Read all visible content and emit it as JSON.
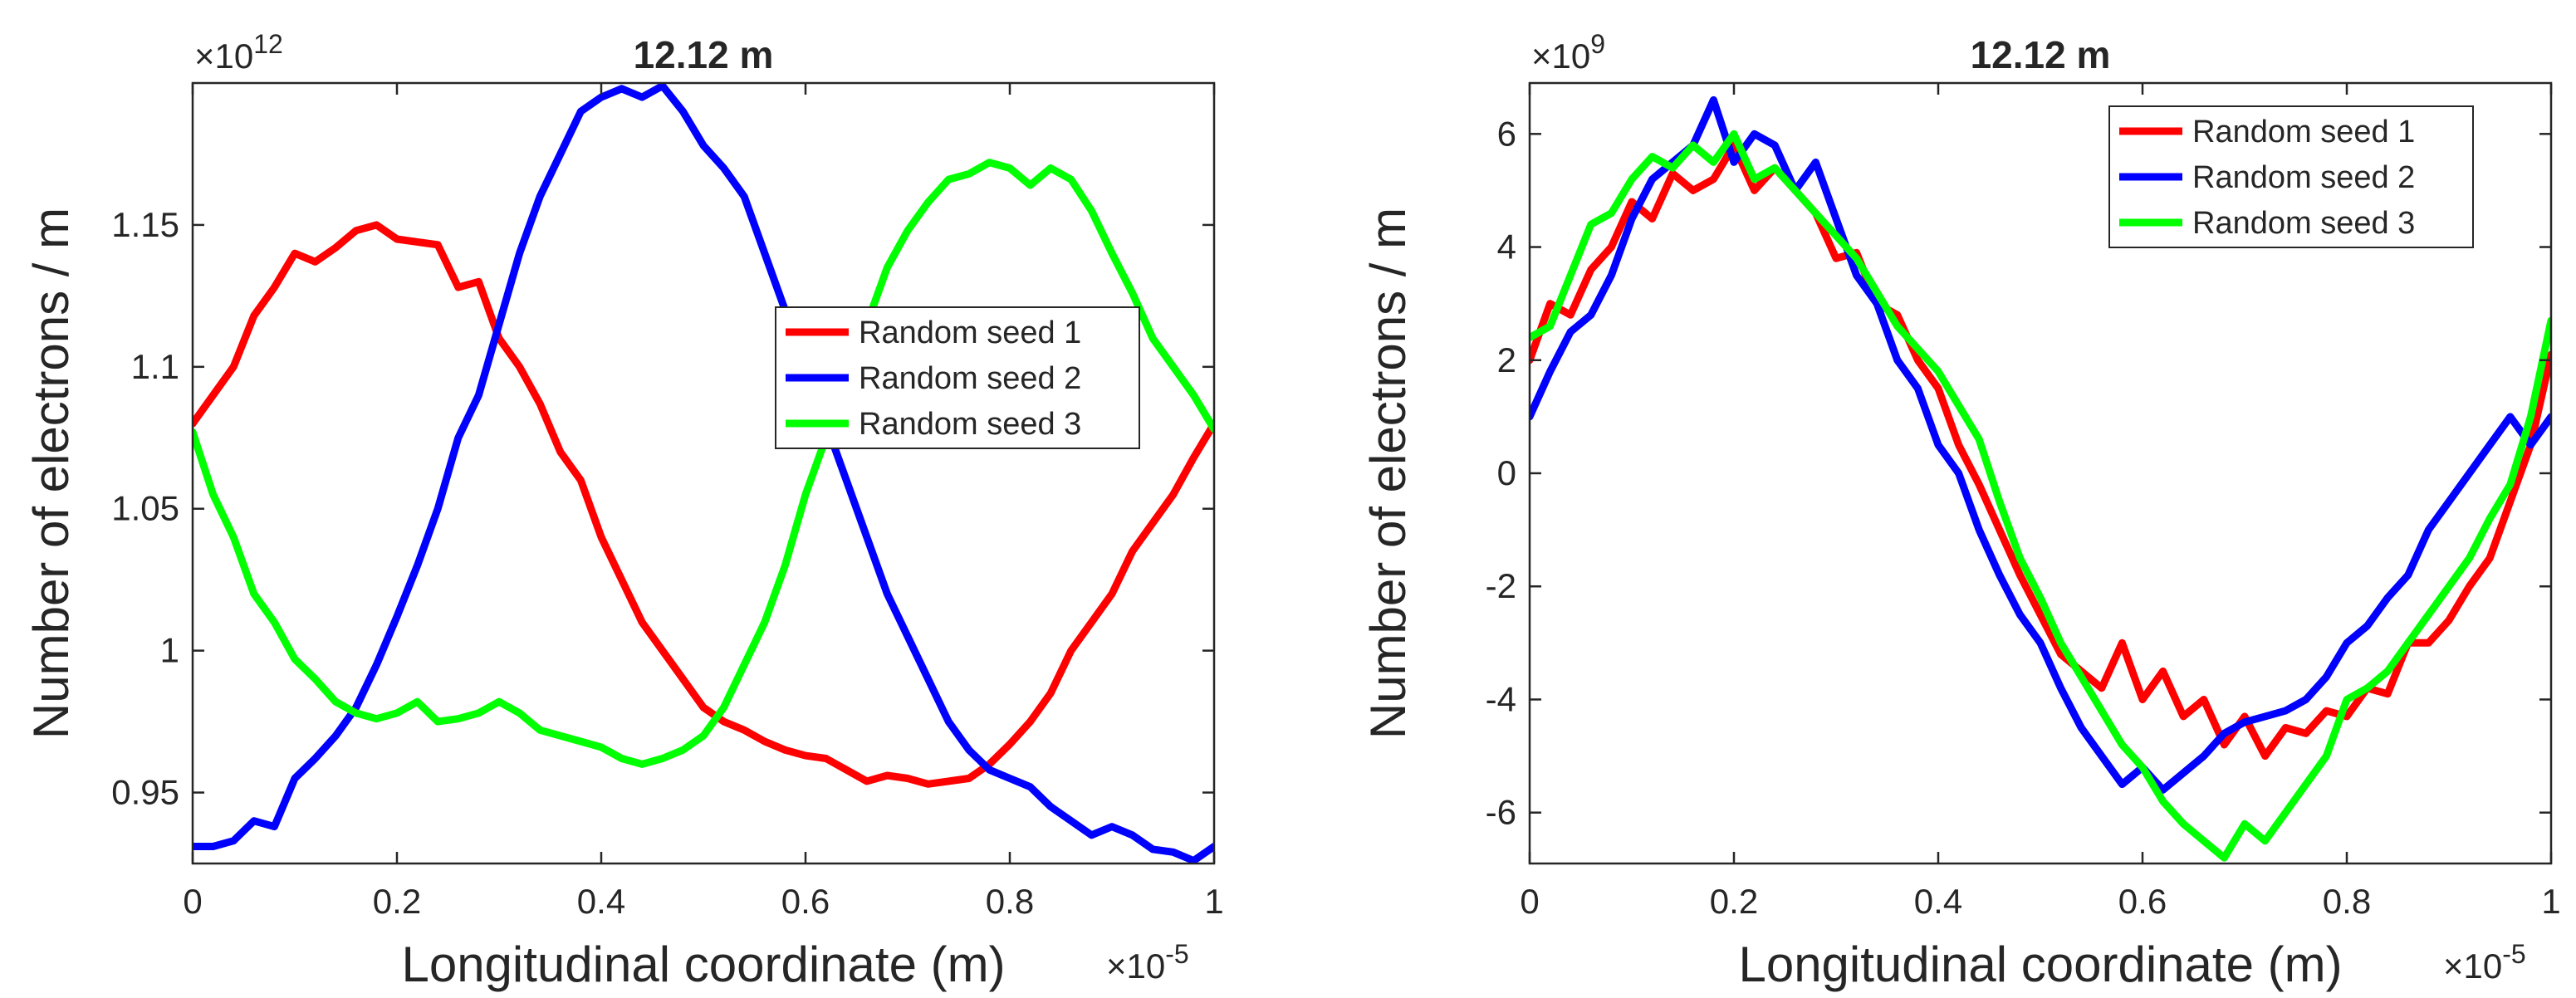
{
  "chart_data": [
    {
      "type": "line",
      "title": "12.12 m",
      "xlabel": "Longitudinal coordinate (m)",
      "ylabel": "Number of electrons / m",
      "x_exponent": "×10",
      "x_exponent_power": "-5",
      "y_exponent": "×10",
      "y_exponent_power": "12",
      "xlim": [
        0,
        1
      ],
      "ylim": [
        0.925,
        1.2
      ],
      "xticks": [
        0,
        0.2,
        0.4,
        0.6,
        0.8,
        1
      ],
      "xtick_labels": [
        "0",
        "0.2",
        "0.4",
        "0.6",
        "0.8",
        "1"
      ],
      "yticks": [
        0.95,
        1.0,
        1.05,
        1.1,
        1.15
      ],
      "ytick_labels": [
        "0.95",
        "1",
        "1.05",
        "1.1",
        "1.15"
      ],
      "legend_position": "center-right",
      "grid": false,
      "series": [
        {
          "name": "Random seed 1",
          "color": "#ff0000",
          "x": [
            0,
            0.02,
            0.04,
            0.06,
            0.08,
            0.1,
            0.12,
            0.14,
            0.16,
            0.18,
            0.2,
            0.22,
            0.24,
            0.26,
            0.28,
            0.3,
            0.32,
            0.34,
            0.36,
            0.38,
            0.4,
            0.42,
            0.44,
            0.46,
            0.48,
            0.5,
            0.52,
            0.54,
            0.56,
            0.58,
            0.6,
            0.62,
            0.64,
            0.66,
            0.68,
            0.7,
            0.72,
            0.74,
            0.76,
            0.78,
            0.8,
            0.82,
            0.84,
            0.86,
            0.88,
            0.9,
            0.92,
            0.94,
            0.96,
            0.98,
            1.0
          ],
          "values": [
            1.08,
            1.09,
            1.1,
            1.118,
            1.128,
            1.14,
            1.137,
            1.142,
            1.148,
            1.15,
            1.145,
            1.144,
            1.143,
            1.128,
            1.13,
            1.11,
            1.1,
            1.087,
            1.07,
            1.06,
            1.04,
            1.025,
            1.01,
            1.0,
            0.99,
            0.98,
            0.975,
            0.972,
            0.968,
            0.965,
            0.963,
            0.962,
            0.958,
            0.954,
            0.956,
            0.955,
            0.953,
            0.954,
            0.955,
            0.96,
            0.967,
            0.975,
            0.985,
            1.0,
            1.01,
            1.02,
            1.035,
            1.045,
            1.055,
            1.068,
            1.08
          ]
        },
        {
          "name": "Random seed 2",
          "color": "#0000ff",
          "x": [
            0,
            0.02,
            0.04,
            0.06,
            0.08,
            0.1,
            0.12,
            0.14,
            0.16,
            0.18,
            0.2,
            0.22,
            0.24,
            0.26,
            0.28,
            0.3,
            0.32,
            0.34,
            0.36,
            0.38,
            0.4,
            0.42,
            0.44,
            0.46,
            0.48,
            0.5,
            0.52,
            0.54,
            0.56,
            0.58,
            0.6,
            0.62,
            0.64,
            0.66,
            0.68,
            0.7,
            0.72,
            0.74,
            0.76,
            0.78,
            0.8,
            0.82,
            0.84,
            0.86,
            0.88,
            0.9,
            0.92,
            0.94,
            0.96,
            0.98,
            1.0
          ],
          "values": [
            0.931,
            0.931,
            0.933,
            0.94,
            0.938,
            0.955,
            0.962,
            0.97,
            0.98,
            0.995,
            1.012,
            1.03,
            1.05,
            1.075,
            1.09,
            1.115,
            1.14,
            1.16,
            1.175,
            1.19,
            1.195,
            1.198,
            1.195,
            1.199,
            1.19,
            1.178,
            1.17,
            1.16,
            1.14,
            1.12,
            1.1,
            1.08,
            1.06,
            1.04,
            1.02,
            1.005,
            0.99,
            0.975,
            0.965,
            0.958,
            0.955,
            0.952,
            0.945,
            0.94,
            0.935,
            0.938,
            0.935,
            0.93,
            0.929,
            0.926,
            0.931
          ]
        },
        {
          "name": "Random seed 3",
          "color": "#00ff00",
          "x": [
            0,
            0.02,
            0.04,
            0.06,
            0.08,
            0.1,
            0.12,
            0.14,
            0.16,
            0.18,
            0.2,
            0.22,
            0.24,
            0.26,
            0.28,
            0.3,
            0.32,
            0.34,
            0.36,
            0.38,
            0.4,
            0.42,
            0.44,
            0.46,
            0.48,
            0.5,
            0.52,
            0.54,
            0.56,
            0.58,
            0.6,
            0.62,
            0.64,
            0.66,
            0.68,
            0.7,
            0.72,
            0.74,
            0.76,
            0.78,
            0.8,
            0.82,
            0.84,
            0.86,
            0.88,
            0.9,
            0.92,
            0.94,
            0.96,
            0.98,
            1.0
          ],
          "values": [
            1.077,
            1.055,
            1.04,
            1.02,
            1.01,
            0.997,
            0.99,
            0.982,
            0.978,
            0.976,
            0.978,
            0.982,
            0.975,
            0.976,
            0.978,
            0.982,
            0.978,
            0.972,
            0.97,
            0.968,
            0.966,
            0.962,
            0.96,
            0.962,
            0.965,
            0.97,
            0.98,
            0.995,
            1.01,
            1.03,
            1.055,
            1.075,
            1.095,
            1.115,
            1.135,
            1.148,
            1.158,
            1.166,
            1.168,
            1.172,
            1.17,
            1.164,
            1.17,
            1.166,
            1.155,
            1.14,
            1.126,
            1.11,
            1.1,
            1.09,
            1.078
          ]
        }
      ]
    },
    {
      "type": "line",
      "title": "12.12 m",
      "xlabel": "Longitudinal coordinate (m)",
      "ylabel": "Number of electrons / m",
      "x_exponent": "×10",
      "x_exponent_power": "-5",
      "y_exponent": "×10",
      "y_exponent_power": "9",
      "xlim": [
        0,
        1
      ],
      "ylim": [
        -6.9,
        6.9
      ],
      "xticks": [
        0,
        0.2,
        0.4,
        0.6,
        0.8,
        1
      ],
      "xtick_labels": [
        "0",
        "0.2",
        "0.4",
        "0.6",
        "0.8",
        "1"
      ],
      "yticks": [
        -6,
        -4,
        -2,
        0,
        2,
        4,
        6
      ],
      "ytick_labels": [
        "-6",
        "-4",
        "-2",
        "0",
        "2",
        "4",
        "6"
      ],
      "legend_position": "top-right",
      "grid": false,
      "series": [
        {
          "name": "Random seed 1",
          "color": "#ff0000",
          "x": [
            0,
            0.02,
            0.04,
            0.06,
            0.08,
            0.1,
            0.12,
            0.14,
            0.16,
            0.18,
            0.2,
            0.22,
            0.24,
            0.26,
            0.28,
            0.3,
            0.32,
            0.34,
            0.36,
            0.38,
            0.4,
            0.42,
            0.44,
            0.46,
            0.48,
            0.5,
            0.52,
            0.54,
            0.56,
            0.58,
            0.6,
            0.62,
            0.64,
            0.66,
            0.68,
            0.7,
            0.72,
            0.74,
            0.76,
            0.78,
            0.8,
            0.82,
            0.84,
            0.86,
            0.88,
            0.9,
            0.92,
            0.94,
            0.96,
            0.98,
            1.0
          ],
          "values": [
            2.0,
            3.0,
            2.8,
            3.6,
            4.0,
            4.8,
            4.5,
            5.3,
            5.0,
            5.2,
            5.8,
            5.0,
            5.4,
            5.0,
            4.6,
            3.8,
            3.9,
            3.0,
            2.8,
            2.0,
            1.5,
            0.5,
            -0.2,
            -1.0,
            -1.8,
            -2.5,
            -3.2,
            -3.5,
            -3.8,
            -3.0,
            -4.0,
            -3.5,
            -4.3,
            -4.0,
            -4.8,
            -4.3,
            -5.0,
            -4.5,
            -4.6,
            -4.2,
            -4.3,
            -3.8,
            -3.9,
            -3.0,
            -3.0,
            -2.6,
            -2.0,
            -1.5,
            -0.5,
            0.5,
            2.1
          ]
        },
        {
          "name": "Random seed 2",
          "color": "#0000ff",
          "x": [
            0,
            0.02,
            0.04,
            0.06,
            0.08,
            0.1,
            0.12,
            0.14,
            0.16,
            0.18,
            0.2,
            0.22,
            0.24,
            0.26,
            0.28,
            0.3,
            0.32,
            0.34,
            0.36,
            0.38,
            0.4,
            0.42,
            0.44,
            0.46,
            0.48,
            0.5,
            0.52,
            0.54,
            0.56,
            0.58,
            0.6,
            0.62,
            0.64,
            0.66,
            0.68,
            0.7,
            0.72,
            0.74,
            0.76,
            0.78,
            0.8,
            0.82,
            0.84,
            0.86,
            0.88,
            0.9,
            0.92,
            0.94,
            0.96,
            0.98,
            1.0
          ],
          "values": [
            1.0,
            1.8,
            2.5,
            2.8,
            3.5,
            4.5,
            5.2,
            5.5,
            5.8,
            6.6,
            5.5,
            6.0,
            5.8,
            5.0,
            5.5,
            4.5,
            3.5,
            3.0,
            2.0,
            1.5,
            0.5,
            0.0,
            -1.0,
            -1.8,
            -2.5,
            -3.0,
            -3.8,
            -4.5,
            -5.0,
            -5.5,
            -5.2,
            -5.6,
            -5.3,
            -5.0,
            -4.6,
            -4.4,
            -4.3,
            -4.2,
            -4.0,
            -3.6,
            -3.0,
            -2.7,
            -2.2,
            -1.8,
            -1.0,
            -0.5,
            0.0,
            0.5,
            1.0,
            0.5,
            1.0
          ]
        },
        {
          "name": "Random seed 3",
          "color": "#00ff00",
          "x": [
            0,
            0.02,
            0.04,
            0.06,
            0.08,
            0.1,
            0.12,
            0.14,
            0.16,
            0.18,
            0.2,
            0.22,
            0.24,
            0.26,
            0.28,
            0.3,
            0.32,
            0.34,
            0.36,
            0.38,
            0.4,
            0.42,
            0.44,
            0.46,
            0.48,
            0.5,
            0.52,
            0.54,
            0.56,
            0.58,
            0.6,
            0.62,
            0.64,
            0.66,
            0.68,
            0.7,
            0.72,
            0.74,
            0.76,
            0.78,
            0.8,
            0.82,
            0.84,
            0.86,
            0.88,
            0.9,
            0.92,
            0.94,
            0.96,
            0.98,
            1.0
          ],
          "values": [
            2.4,
            2.6,
            3.5,
            4.4,
            4.6,
            5.2,
            5.6,
            5.4,
            5.8,
            5.5,
            6.0,
            5.2,
            5.4,
            5.0,
            4.6,
            4.2,
            3.8,
            3.2,
            2.6,
            2.2,
            1.8,
            1.2,
            0.6,
            -0.5,
            -1.5,
            -2.2,
            -3.0,
            -3.6,
            -4.2,
            -4.8,
            -5.2,
            -5.8,
            -6.2,
            -6.5,
            -6.8,
            -6.2,
            -6.5,
            -6.0,
            -5.5,
            -5.0,
            -4.0,
            -3.8,
            -3.5,
            -3.0,
            -2.5,
            -2.0,
            -1.5,
            -0.8,
            -0.2,
            1.0,
            2.7
          ]
        }
      ]
    }
  ]
}
